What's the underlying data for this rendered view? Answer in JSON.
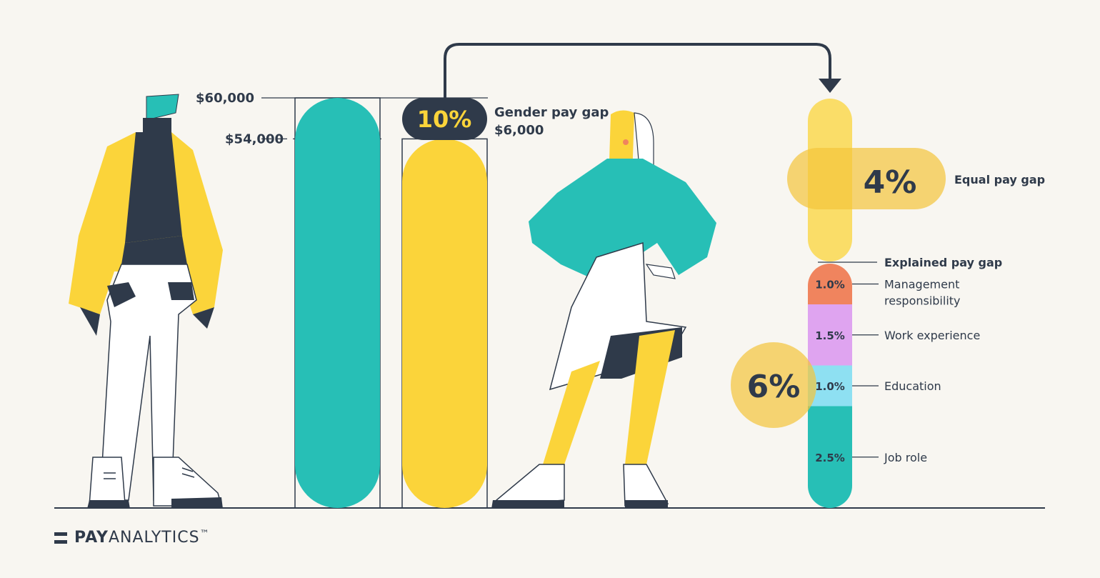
{
  "chart_data": {
    "type": "bar",
    "categories": [
      "Men",
      "Women"
    ],
    "values": [
      60000,
      54000
    ],
    "ylabels": [
      "$60,000",
      "$54,000"
    ],
    "gender_gap": {
      "percent": "10%",
      "label": "Gender pay gap",
      "amount": "$6,000"
    },
    "equal_pay_gap": {
      "percent": "4%",
      "label": "Equal pay gap"
    },
    "explained": {
      "label": "Explained pay gap",
      "total_label": "6%",
      "components": [
        {
          "name": "Management responsibility",
          "lines": [
            "Management",
            "responsibility"
          ],
          "value": 1.0,
          "label": "1.0%",
          "color": "#f0845e"
        },
        {
          "name": "Work experience",
          "lines": [
            "Work experience"
          ],
          "value": 1.5,
          "label": "1.5%",
          "color": "#dfa4f0"
        },
        {
          "name": "Education",
          "lines": [
            "Education"
          ],
          "value": 1.0,
          "label": "1.0%",
          "color": "#8ee0f2"
        },
        {
          "name": "Job role",
          "lines": [
            "Job role"
          ],
          "value": 2.5,
          "label": "2.5%",
          "color": "#27bfb6"
        }
      ]
    },
    "colors": {
      "men": "#27bfb6",
      "women": "#fbd43a",
      "dark": "#2f3a4a"
    }
  },
  "logo": {
    "bold": "PAY",
    "light": "ANALYTICS",
    "tm": "™"
  }
}
